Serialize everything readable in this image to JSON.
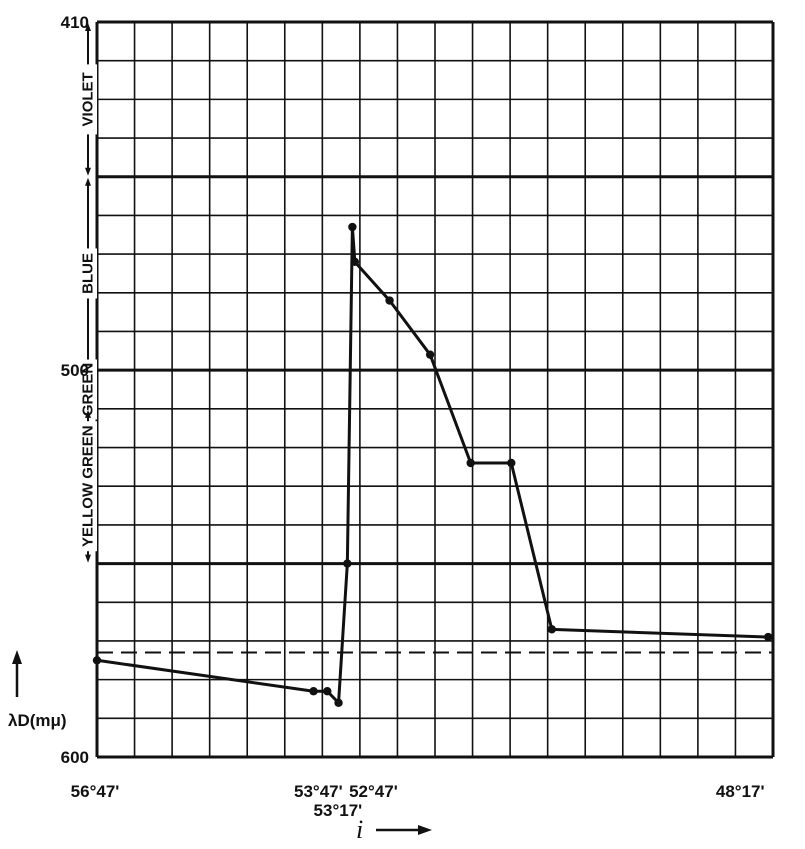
{
  "chart_data": {
    "type": "line",
    "title": "",
    "xlabel": "i",
    "ylabel": "λD(mμ)",
    "x_ticks": [
      "56°47'",
      "53°47'",
      "53°17'",
      "52°47'",
      "48°17'"
    ],
    "y_ticks": [
      "410",
      "500",
      "600"
    ],
    "ylim": [
      410,
      600
    ],
    "y_reversed": true,
    "grid": true,
    "color_bands": [
      {
        "name": "VIOLET",
        "from": 410,
        "to": 450
      },
      {
        "name": "BLUE",
        "from": 450,
        "to": 500
      },
      {
        "name": "GREEN",
        "from": 500,
        "to": 510
      },
      {
        "name": "YELLOW GREEN",
        "from": 510,
        "to": 550
      }
    ],
    "series": [
      {
        "name": "",
        "points": [
          {
            "x_deg": 56.783,
            "y": 575
          },
          {
            "x_deg": 53.9,
            "y": 583
          },
          {
            "x_deg": 53.717,
            "y": 583
          },
          {
            "x_deg": 53.567,
            "y": 586
          },
          {
            "x_deg": 53.45,
            "y": 550
          },
          {
            "x_deg": 53.383,
            "y": 463
          },
          {
            "x_deg": 53.35,
            "y": 472
          },
          {
            "x_deg": 52.917,
            "y": 482
          },
          {
            "x_deg": 52.417,
            "y": 496
          },
          {
            "x_deg": 51.917,
            "y": 524
          },
          {
            "x_deg": 51.417,
            "y": 524
          },
          {
            "x_deg": 50.917,
            "y": 567
          },
          {
            "x_deg": 48.25,
            "y": 569
          }
        ]
      }
    ],
    "reference_line": {
      "style": "dashed",
      "y": 573
    }
  }
}
